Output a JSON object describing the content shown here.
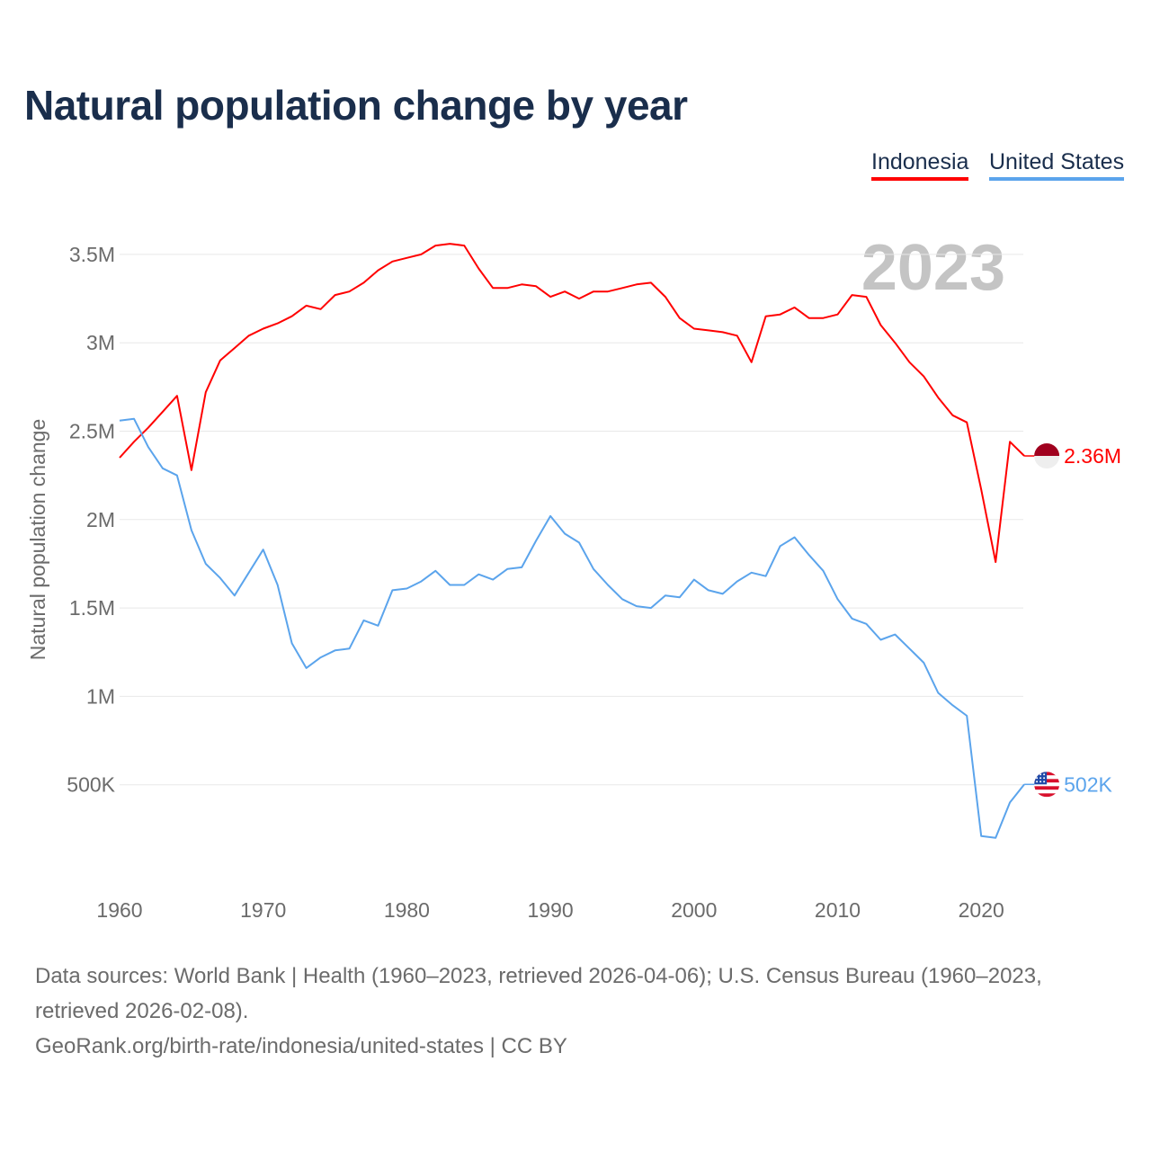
{
  "chart_data": {
    "type": "line",
    "title": "Natural population change by year",
    "ylabel": "Natural population change",
    "xlabel": "",
    "ylim": [
      0,
      3.75
    ],
    "xlim": [
      1960,
      2023
    ],
    "grid": true,
    "legend_placement": "top-right",
    "year_watermark": "2023",
    "y_ticks": [
      {
        "v": 0.5,
        "label": "500K"
      },
      {
        "v": 1,
        "label": "1M"
      },
      {
        "v": 1.5,
        "label": "1.5M"
      },
      {
        "v": 2,
        "label": "2M"
      },
      {
        "v": 2.5,
        "label": "2.5M"
      },
      {
        "v": 3,
        "label": "3M"
      },
      {
        "v": 3.5,
        "label": "3.5M"
      }
    ],
    "x_ticks": [
      "1960",
      "1970",
      "1980",
      "1990",
      "2000",
      "2010",
      "2020"
    ],
    "x_start": 1960,
    "units": "millions",
    "series": [
      {
        "name": "Indonesia",
        "color": "#ff0000",
        "end_label": "2.36M",
        "flag": "indonesia-flag",
        "values": [
          2.35,
          2.44,
          2.52,
          2.61,
          2.7,
          2.28,
          2.72,
          2.9,
          2.97,
          3.04,
          3.08,
          3.11,
          3.15,
          3.21,
          3.19,
          3.27,
          3.29,
          3.34,
          3.41,
          3.46,
          3.48,
          3.5,
          3.55,
          3.56,
          3.55,
          3.42,
          3.31,
          3.31,
          3.33,
          3.32,
          3.26,
          3.29,
          3.25,
          3.29,
          3.29,
          3.31,
          3.33,
          3.34,
          3.26,
          3.14,
          3.08,
          3.07,
          3.06,
          3.04,
          2.89,
          3.15,
          3.16,
          3.2,
          3.14,
          3.14,
          3.16,
          3.27,
          3.26,
          3.1,
          3.0,
          2.89,
          2.81,
          2.69,
          2.59,
          2.55,
          2.17,
          1.76,
          2.44,
          2.36
        ]
      },
      {
        "name": "United States",
        "color": "#5ba4ec",
        "end_label": "502K",
        "flag": "united-states-flag",
        "values": [
          2.56,
          2.57,
          2.41,
          2.29,
          2.25,
          1.94,
          1.75,
          1.67,
          1.57,
          1.7,
          1.83,
          1.63,
          1.3,
          1.16,
          1.22,
          1.26,
          1.27,
          1.43,
          1.4,
          1.6,
          1.61,
          1.65,
          1.71,
          1.63,
          1.63,
          1.69,
          1.66,
          1.72,
          1.73,
          1.88,
          2.02,
          1.92,
          1.87,
          1.72,
          1.63,
          1.55,
          1.51,
          1.5,
          1.57,
          1.56,
          1.66,
          1.6,
          1.58,
          1.65,
          1.7,
          1.68,
          1.85,
          1.9,
          1.8,
          1.71,
          1.55,
          1.44,
          1.41,
          1.32,
          1.35,
          1.27,
          1.19,
          1.02,
          0.95,
          0.89,
          0.21,
          0.2,
          0.4,
          0.502
        ]
      }
    ]
  },
  "footer": {
    "sources": "Data sources: World Bank | Health (1960–2023, retrieved 2026-04-06); U.S. Census Bureau (1960–2023, retrieved 2026-02-08).",
    "attribution": "GeoRank.org/birth-rate/indonesia/united-states | CC BY"
  }
}
